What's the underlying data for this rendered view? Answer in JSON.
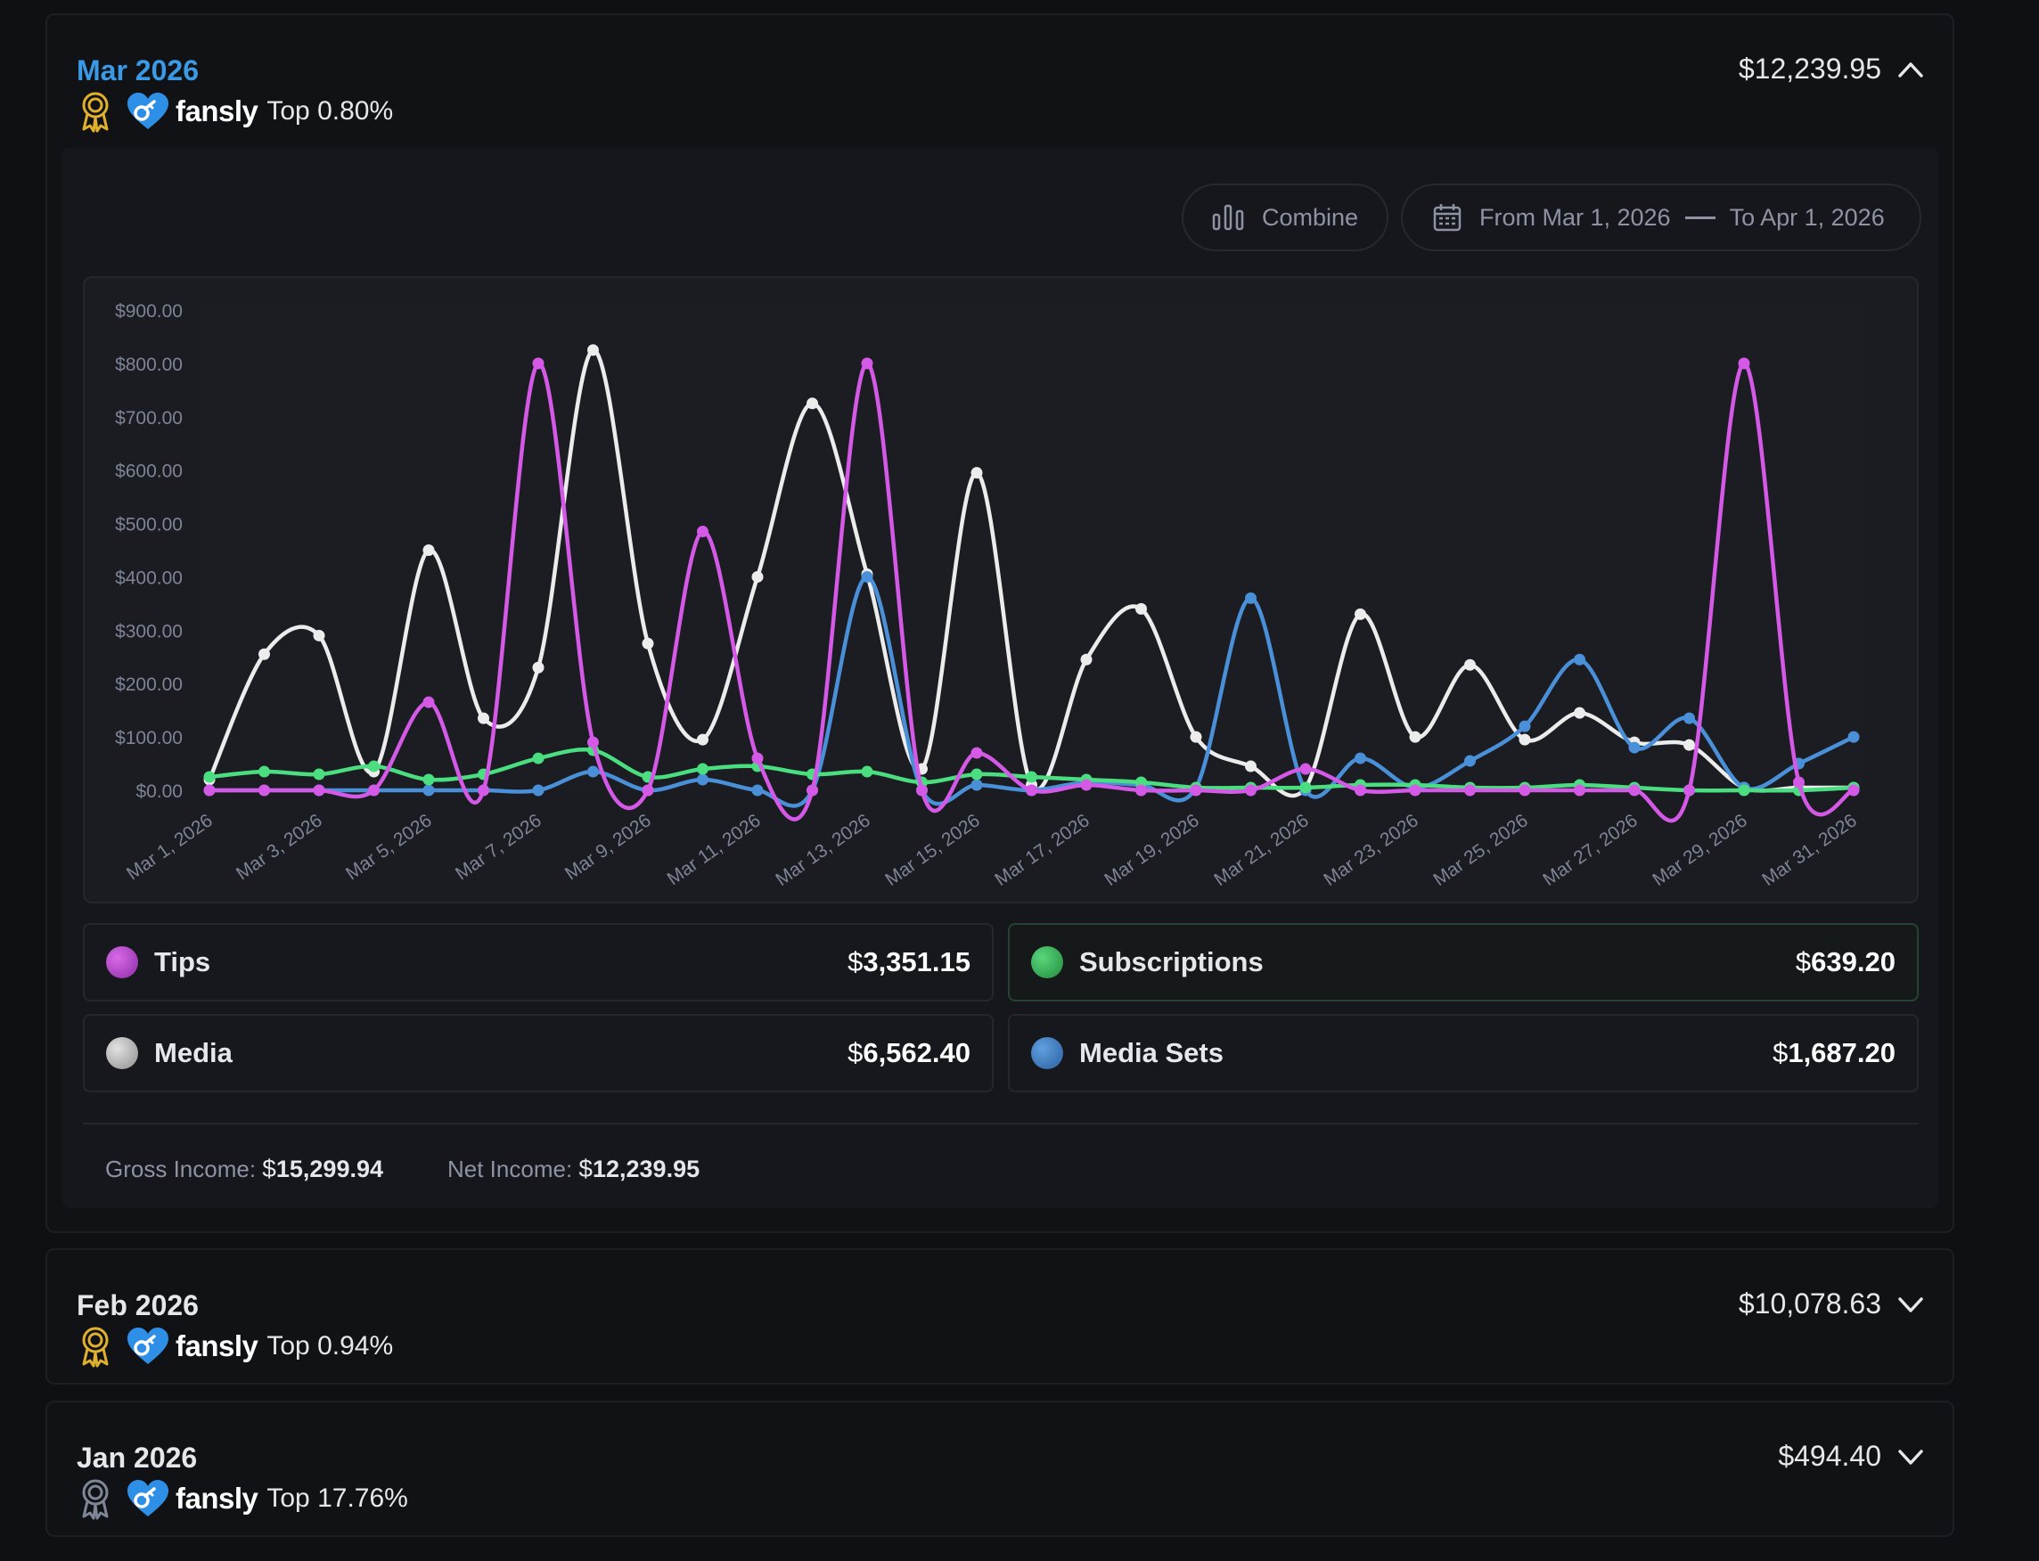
{
  "months": [
    {
      "title": "Mar 2026",
      "brand": "fansly",
      "top": "Top 0.80%",
      "total": "12,239.95",
      "expanded": true,
      "award_color": "#e0b02e"
    },
    {
      "title": "Feb 2026",
      "brand": "fansly",
      "top": "Top 0.94%",
      "total": "10,078.63",
      "expanded": false,
      "award_color": "#e0b02e"
    },
    {
      "title": "Jan 2026",
      "brand": "fansly",
      "top": "Top 17.76%",
      "total": "494.40",
      "expanded": false,
      "award_color": "#7f8797"
    }
  ],
  "currency_symbol": "$",
  "toolbar": {
    "combine_label": "Combine",
    "range_from": "From Mar 1, 2026",
    "range_to": "To Apr 1, 2026"
  },
  "legend": [
    {
      "name": "Tips",
      "value": "3,351.15",
      "color": "#c34fd6"
    },
    {
      "name": "Subscriptions",
      "value": "639.20",
      "color": "#3fbf63"
    },
    {
      "name": "Media",
      "value": "6,562.40",
      "color": "#bdbdbd"
    },
    {
      "name": "Media Sets",
      "value": "1,687.20",
      "color": "#3e7fc4"
    }
  ],
  "summary": {
    "gross_label": "Gross Income:",
    "gross_value": "15,299.94",
    "net_label": "Net Income:",
    "net_value": "12,239.95"
  },
  "chart_data": {
    "type": "line",
    "title": "",
    "xlabel": "",
    "ylabel": "",
    "ylim": [
      0,
      900
    ],
    "yticks": [
      "$0.00",
      "$100.00",
      "$200.00",
      "$300.00",
      "$400.00",
      "$500.00",
      "$600.00",
      "$700.00",
      "$800.00",
      "$900.00"
    ],
    "x": [
      "Mar 1, 2026",
      "Mar 2, 2026",
      "Mar 3, 2026",
      "Mar 4, 2026",
      "Mar 5, 2026",
      "Mar 6, 2026",
      "Mar 7, 2026",
      "Mar 8, 2026",
      "Mar 9, 2026",
      "Mar 10, 2026",
      "Mar 11, 2026",
      "Mar 12, 2026",
      "Mar 13, 2026",
      "Mar 14, 2026",
      "Mar 15, 2026",
      "Mar 16, 2026",
      "Mar 17, 2026",
      "Mar 18, 2026",
      "Mar 19, 2026",
      "Mar 20, 2026",
      "Mar 21, 2026",
      "Mar 22, 2026",
      "Mar 23, 2026",
      "Mar 24, 2026",
      "Mar 25, 2026",
      "Mar 26, 2026",
      "Mar 27, 2026",
      "Mar 28, 2026",
      "Mar 29, 2026",
      "Mar 30, 2026",
      "Mar 31, 2026"
    ],
    "x_tick_labels": [
      "Mar 1, 2026",
      "Mar 3, 2026",
      "Mar 5, 2026",
      "Mar 7, 2026",
      "Mar 9, 2026",
      "Mar 11, 2026",
      "Mar 13, 2026",
      "Mar 15, 2026",
      "Mar 17, 2026",
      "Mar 19, 2026",
      "Mar 21, 2026",
      "Mar 23, 2026",
      "Mar 25, 2026",
      "Mar 27, 2026",
      "Mar 29, 2026",
      "Mar 31, 2026"
    ],
    "series": [
      {
        "name": "Media",
        "color": "#ececec",
        "values": [
          20,
          255,
          290,
          35,
          450,
          135,
          230,
          825,
          275,
          95,
          400,
          725,
          405,
          40,
          595,
          10,
          245,
          340,
          100,
          45,
          5,
          330,
          100,
          235,
          95,
          145,
          90,
          85,
          5,
          5,
          5
        ]
      },
      {
        "name": "Media Sets",
        "color": "#4a90d9",
        "values": [
          0,
          0,
          0,
          0,
          0,
          0,
          0,
          35,
          0,
          20,
          0,
          0,
          400,
          0,
          10,
          0,
          15,
          10,
          5,
          360,
          0,
          60,
          5,
          55,
          120,
          245,
          80,
          135,
          5,
          50,
          100
        ]
      },
      {
        "name": "Subscriptions",
        "color": "#4ade80",
        "values": [
          25,
          35,
          30,
          45,
          20,
          30,
          60,
          75,
          25,
          40,
          45,
          30,
          35,
          15,
          30,
          25,
          20,
          15,
          5,
          5,
          5,
          10,
          10,
          5,
          5,
          10,
          5,
          0,
          0,
          0,
          5
        ]
      },
      {
        "name": "Tips",
        "color": "#d459e6",
        "values": [
          0,
          0,
          0,
          0,
          165,
          0,
          800,
          90,
          0,
          485,
          60,
          0,
          800,
          0,
          70,
          0,
          10,
          0,
          0,
          0,
          40,
          0,
          0,
          0,
          0,
          0,
          0,
          0,
          800,
          15,
          0
        ]
      }
    ]
  }
}
